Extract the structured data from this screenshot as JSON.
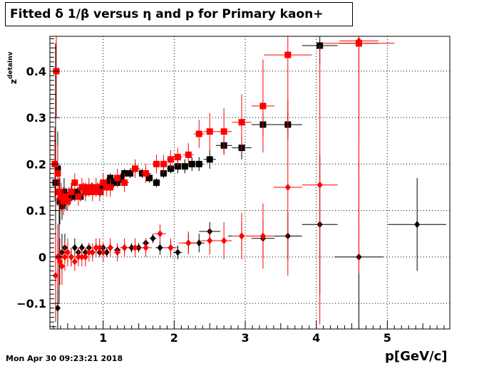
{
  "title": "Fitted δ 1/β versus η and p for Primary kaon+",
  "timestamp": "Mon Apr 30 09:23:21 2018",
  "chart_data": {
    "type": "scatter",
    "xlabel": "p[GeV/c]",
    "ylabel": "z_detaInv",
    "xlim": [
      0.25,
      5.88
    ],
    "ylim": [
      -0.155,
      0.475
    ],
    "xticks": [
      1,
      2,
      3,
      4,
      5
    ],
    "yticks": [
      -0.1,
      0,
      0.1,
      0.2,
      0.3,
      0.4
    ],
    "ytick_labels": [
      "−0.1",
      "0",
      "0.1",
      "0.2",
      "0.3",
      "0.4"
    ],
    "grid": true,
    "colors": {
      "black": "#000000",
      "red": "#ff0000"
    },
    "series": [
      {
        "color": "#000000",
        "marker": "square",
        "points": [
          [
            0.33,
            0.16,
            0.3
          ],
          [
            0.36,
            0.19,
            0.08
          ],
          [
            0.39,
            0.12,
            0.05
          ],
          [
            0.42,
            0.11,
            0.03
          ],
          [
            0.45,
            0.14,
            0.03
          ],
          [
            0.48,
            0.12,
            0.02
          ],
          [
            0.52,
            0.13,
            0.02
          ],
          [
            0.56,
            0.14,
            0.02
          ],
          [
            0.6,
            0.13,
            0.01
          ],
          [
            0.64,
            0.14,
            0.01
          ],
          [
            0.68,
            0.13,
            0.01
          ],
          [
            0.72,
            0.15,
            0.01
          ],
          [
            0.76,
            0.14,
            0.01
          ],
          [
            0.8,
            0.15,
            0.01
          ],
          [
            0.84,
            0.15,
            0.01
          ],
          [
            0.88,
            0.145,
            0.01
          ],
          [
            0.92,
            0.15,
            0.01
          ],
          [
            0.96,
            0.14,
            0.01
          ],
          [
            1.0,
            0.15,
            0.01
          ],
          [
            1.05,
            0.16,
            0.01
          ],
          [
            1.1,
            0.17,
            0.01
          ],
          [
            1.15,
            0.16,
            0.01
          ],
          [
            1.2,
            0.16,
            0.01
          ],
          [
            1.25,
            0.17,
            0.01
          ],
          [
            1.3,
            0.18,
            0.01
          ],
          [
            1.38,
            0.18,
            0.01
          ],
          [
            1.45,
            0.19,
            0.01
          ],
          [
            1.55,
            0.18,
            0.01
          ],
          [
            1.65,
            0.17,
            0.01
          ],
          [
            1.75,
            0.16,
            0.01
          ],
          [
            1.85,
            0.18,
            0.01
          ],
          [
            1.95,
            0.19,
            0.01
          ],
          [
            2.05,
            0.195,
            0.015
          ],
          [
            2.15,
            0.195,
            0.015
          ],
          [
            2.25,
            0.2,
            0.015
          ],
          [
            2.35,
            0.2,
            0.015
          ],
          [
            2.5,
            0.21,
            0.02
          ],
          [
            2.7,
            0.24,
            0.02
          ],
          [
            2.95,
            0.235,
            0.025
          ],
          [
            3.25,
            0.285,
            0.025
          ],
          [
            3.6,
            0.285,
            0.03
          ],
          [
            4.05,
            0.455,
            0.04
          ],
          [
            4.6,
            0.46,
            0.06
          ]
        ]
      },
      {
        "color": "#ff0000",
        "marker": "square",
        "points": [
          [
            0.32,
            0.2,
            0.08
          ],
          [
            0.34,
            0.4,
            0.1
          ],
          [
            0.36,
            0.18,
            0.06
          ],
          [
            0.38,
            0.14,
            0.04
          ],
          [
            0.41,
            0.13,
            0.03
          ],
          [
            0.44,
            0.12,
            0.03
          ],
          [
            0.47,
            0.13,
            0.02
          ],
          [
            0.5,
            0.12,
            0.02
          ],
          [
            0.55,
            0.14,
            0.02
          ],
          [
            0.6,
            0.16,
            0.02
          ],
          [
            0.65,
            0.13,
            0.02
          ],
          [
            0.7,
            0.15,
            0.02
          ],
          [
            0.75,
            0.14,
            0.02
          ],
          [
            0.8,
            0.15,
            0.02
          ],
          [
            0.85,
            0.14,
            0.02
          ],
          [
            0.9,
            0.15,
            0.02
          ],
          [
            0.95,
            0.14,
            0.02
          ],
          [
            1.0,
            0.16,
            0.02
          ],
          [
            1.05,
            0.15,
            0.02
          ],
          [
            1.1,
            0.15,
            0.02
          ],
          [
            1.2,
            0.17,
            0.02
          ],
          [
            1.3,
            0.16,
            0.02
          ],
          [
            1.45,
            0.19,
            0.02
          ],
          [
            1.6,
            0.18,
            0.02
          ],
          [
            1.75,
            0.2,
            0.02
          ],
          [
            1.85,
            0.2,
            0.02
          ],
          [
            1.95,
            0.21,
            0.02
          ],
          [
            2.05,
            0.215,
            0.02
          ],
          [
            2.2,
            0.22,
            0.025
          ],
          [
            2.35,
            0.265,
            0.03
          ],
          [
            2.5,
            0.27,
            0.04
          ],
          [
            2.7,
            0.27,
            0.05
          ],
          [
            2.95,
            0.29,
            0.06
          ],
          [
            3.25,
            0.325,
            0.1
          ],
          [
            3.6,
            0.435,
            0.16
          ],
          [
            4.6,
            0.46,
            0.2
          ]
        ]
      },
      {
        "color": "#000000",
        "marker": "diamond",
        "points": [
          [
            0.36,
            -0.11,
            0.15
          ],
          [
            0.38,
            0.0,
            0.1
          ],
          [
            0.42,
            0.01,
            0.04
          ],
          [
            0.46,
            0.02,
            0.03
          ],
          [
            0.5,
            0.01,
            0.02
          ],
          [
            0.55,
            0.0,
            0.02
          ],
          [
            0.6,
            0.02,
            0.02
          ],
          [
            0.65,
            0.01,
            0.01
          ],
          [
            0.7,
            0.02,
            0.01
          ],
          [
            0.75,
            0.01,
            0.01
          ],
          [
            0.8,
            0.02,
            0.01
          ],
          [
            0.85,
            0.01,
            0.01
          ],
          [
            0.9,
            0.02,
            0.01
          ],
          [
            0.95,
            0.01,
            0.01
          ],
          [
            1.0,
            0.02,
            0.01
          ],
          [
            1.05,
            0.01,
            0.01
          ],
          [
            1.1,
            0.02,
            0.01
          ],
          [
            1.2,
            0.015,
            0.01
          ],
          [
            1.3,
            0.02,
            0.01
          ],
          [
            1.4,
            0.02,
            0.01
          ],
          [
            1.5,
            0.02,
            0.01
          ],
          [
            1.6,
            0.03,
            0.01
          ],
          [
            1.7,
            0.04,
            0.01
          ],
          [
            1.8,
            0.02,
            0.015
          ],
          [
            1.95,
            0.02,
            0.015
          ],
          [
            2.05,
            0.01,
            0.015
          ],
          [
            2.2,
            0.03,
            0.02
          ],
          [
            2.35,
            0.03,
            0.02
          ],
          [
            2.5,
            0.055,
            0.02
          ],
          [
            2.95,
            0.045,
            0.03
          ],
          [
            3.25,
            0.04,
            0.04
          ],
          [
            3.6,
            0.045,
            0.05
          ],
          [
            4.05,
            0.07,
            0.15
          ],
          [
            4.6,
            0.0,
            0.2
          ],
          [
            5.42,
            0.07,
            0.1
          ]
        ]
      },
      {
        "color": "#ff0000",
        "marker": "diamond",
        "points": [
          [
            0.33,
            -0.04,
            0.1
          ],
          [
            0.36,
            0.0,
            0.07
          ],
          [
            0.39,
            -0.01,
            0.05
          ],
          [
            0.42,
            -0.02,
            0.04
          ],
          [
            0.46,
            0.0,
            0.03
          ],
          [
            0.5,
            0.01,
            0.03
          ],
          [
            0.55,
            0.0,
            0.02
          ],
          [
            0.6,
            -0.01,
            0.02
          ],
          [
            0.65,
            0.0,
            0.02
          ],
          [
            0.7,
            0.0,
            0.02
          ],
          [
            0.75,
            0.0,
            0.02
          ],
          [
            0.8,
            0.01,
            0.02
          ],
          [
            0.85,
            0.01,
            0.02
          ],
          [
            0.9,
            0.02,
            0.02
          ],
          [
            0.95,
            0.02,
            0.02
          ],
          [
            1.0,
            0.01,
            0.02
          ],
          [
            1.1,
            0.02,
            0.02
          ],
          [
            1.2,
            0.01,
            0.02
          ],
          [
            1.3,
            0.02,
            0.02
          ],
          [
            1.45,
            0.02,
            0.02
          ],
          [
            1.6,
            0.02,
            0.02
          ],
          [
            1.8,
            0.05,
            0.02
          ],
          [
            1.95,
            0.02,
            0.02
          ],
          [
            2.2,
            0.03,
            0.025
          ],
          [
            2.5,
            0.035,
            0.03
          ],
          [
            2.7,
            0.035,
            0.04
          ],
          [
            2.95,
            0.045,
            0.05
          ],
          [
            3.25,
            0.045,
            0.07
          ],
          [
            3.6,
            0.15,
            0.19
          ],
          [
            4.05,
            0.155,
            0.3
          ],
          [
            4.6,
            0.465,
            0.5
          ]
        ]
      }
    ]
  }
}
